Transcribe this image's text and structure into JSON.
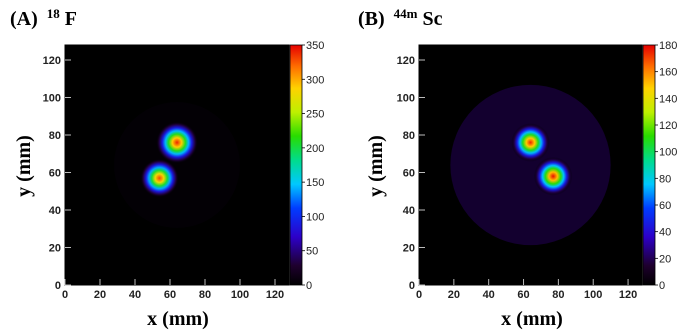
{
  "chart_data": [
    {
      "type": "heatmap",
      "title_label": "(A)",
      "title_isotope_mass": "18",
      "title_isotope_element": "F",
      "xlabel": "x (mm)",
      "ylabel": "y (mm)",
      "xlim": [
        0,
        128
      ],
      "ylim": [
        0,
        128
      ],
      "x_ticks": [
        "0",
        "20",
        "40",
        "60",
        "80",
        "100",
        "120"
      ],
      "y_ticks": [
        "0",
        "20",
        "40",
        "60",
        "80",
        "100",
        "120"
      ],
      "colorbar_range": [
        0,
        350
      ],
      "colorbar_ticks": [
        "0",
        "50",
        "100",
        "150",
        "200",
        "250",
        "300",
        "350"
      ],
      "background_phantom": {
        "center": [
          64,
          64
        ],
        "radius": 36,
        "intensity": 6
      },
      "hot_spots": [
        {
          "x": 64,
          "y": 76,
          "peak": 340,
          "sigma": 5.0
        },
        {
          "x": 54,
          "y": 57,
          "peak": 330,
          "sigma": 4.6
        }
      ],
      "colorscale": "rainbow",
      "grid": false
    },
    {
      "type": "heatmap",
      "title_label": "(B)",
      "title_isotope_mass": "44m",
      "title_isotope_element": "Sc",
      "xlabel": "x (mm)",
      "ylabel": "y (mm)",
      "xlim": [
        0,
        128
      ],
      "ylim": [
        0,
        128
      ],
      "x_ticks": [
        "0",
        "20",
        "40",
        "60",
        "80",
        "100",
        "120"
      ],
      "y_ticks": [
        "0",
        "20",
        "40",
        "60",
        "80",
        "100",
        "120"
      ],
      "colorbar_range": [
        0,
        180
      ],
      "colorbar_ticks": [
        "0",
        "20",
        "40",
        "60",
        "80",
        "100",
        "120",
        "140",
        "160",
        "180"
      ],
      "background_phantom": {
        "center": [
          64,
          64
        ],
        "radius": 46,
        "intensity": 20
      },
      "hot_spots": [
        {
          "x": 64,
          "y": 76,
          "peak": 175,
          "sigma": 4.6
        },
        {
          "x": 77,
          "y": 58,
          "peak": 178,
          "sigma": 4.6
        }
      ],
      "colorscale": "rainbow",
      "grid": false
    }
  ]
}
